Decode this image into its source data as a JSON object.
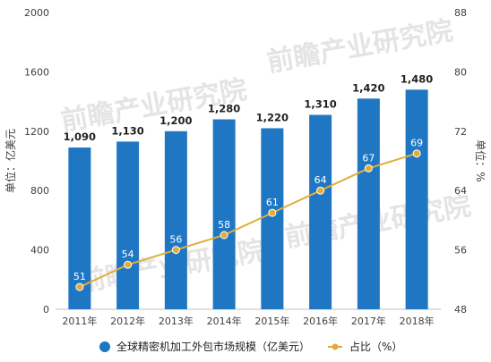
{
  "chart_data": {
    "type": "bar",
    "categories": [
      "2011年",
      "2012年",
      "2013年",
      "2014年",
      "2015年",
      "2016年",
      "2017年",
      "2018年"
    ],
    "series": [
      {
        "name": "全球精密机加工外包市场规模（亿美元）",
        "type": "bar",
        "axis": "left",
        "values": [
          1090,
          1130,
          1200,
          1280,
          1220,
          1310,
          1420,
          1480
        ],
        "labels": [
          "1,090",
          "1,130",
          "1,200",
          "1,280",
          "1,220",
          "1,310",
          "1,420",
          "1,480"
        ]
      },
      {
        "name": "占比（%）",
        "type": "line",
        "axis": "right",
        "values": [
          51,
          54,
          56,
          58,
          61,
          64,
          67,
          69
        ],
        "labels": [
          "51",
          "54",
          "56",
          "58",
          "61",
          "64",
          "67",
          "69"
        ]
      }
    ],
    "ylabel_left": "单位：亿美元",
    "ylabel_right": "单位：%",
    "ylim_left": [
      0,
      2000
    ],
    "yticks_left": [
      "0",
      "400",
      "800",
      "1200",
      "1600",
      "2000"
    ],
    "ylim_right": [
      48,
      88
    ],
    "yticks_right": [
      "48",
      "56",
      "64",
      "72",
      "80",
      "88"
    ],
    "grid": false,
    "legend_position": "bottom",
    "colors": {
      "bar": "#1f77c4",
      "line": "#e0ad3a"
    },
    "watermark": "前瞻产业研究院"
  }
}
